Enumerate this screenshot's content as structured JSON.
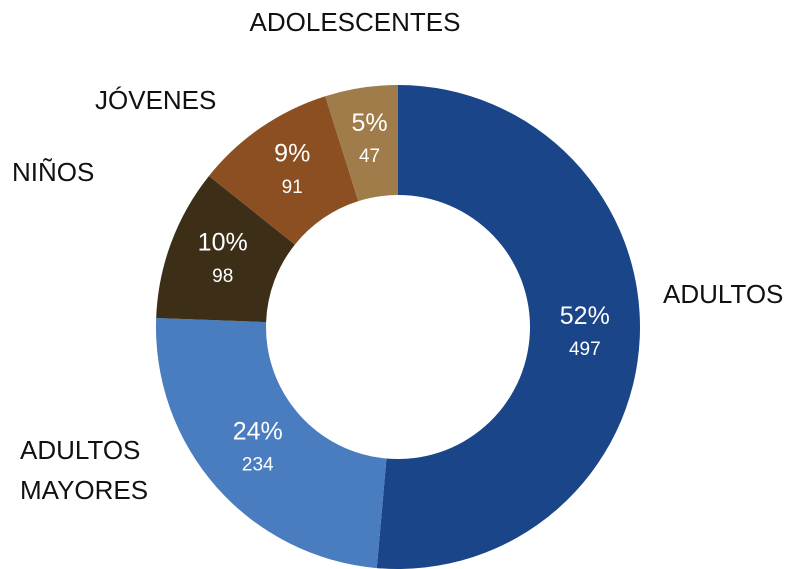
{
  "chart_data": {
    "type": "donut",
    "categories": [
      "ADULTOS",
      "ADULTOS MAYORES",
      "NIÑOS",
      "JÓVENES",
      "ADOLESCENTES"
    ],
    "values": [
      497,
      234,
      98,
      91,
      47
    ],
    "percent_labels": [
      "52%",
      "24%",
      "10%",
      "9%",
      "5%"
    ],
    "colors": [
      "#1a4589",
      "#4a7cc0",
      "#3d2e18",
      "#8b4f22",
      "#a07c4a"
    ]
  }
}
